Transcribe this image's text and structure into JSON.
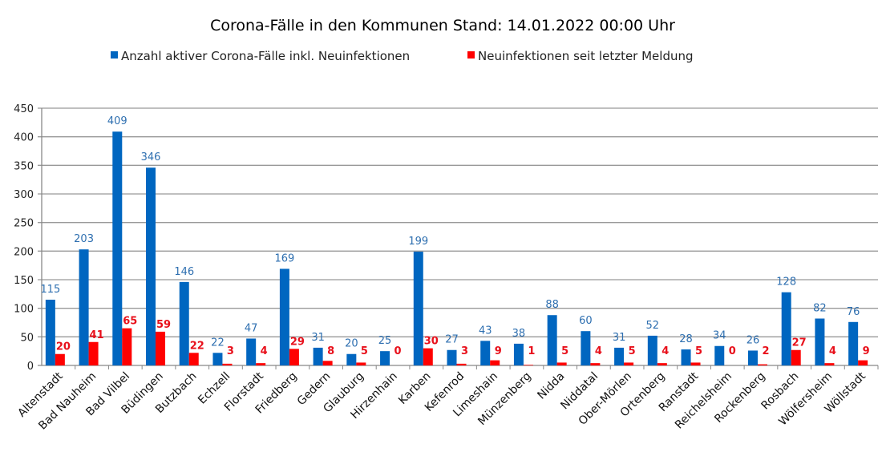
{
  "chart_data": {
    "type": "bar",
    "title": "Corona-Fälle in den Kommunen Stand: 14.01.2022 00:00 Uhr",
    "xlabel": "",
    "ylabel": "",
    "ylim": [
      0,
      450
    ],
    "yticks": [
      0,
      50,
      100,
      150,
      200,
      250,
      300,
      350,
      400,
      450
    ],
    "grid": true,
    "legend_position": "top",
    "categories": [
      "Altenstadt",
      "Bad Nauheim",
      "Bad Vilbel",
      "Büdingen",
      "Butzbach",
      "Echzell",
      "Florstadt",
      "Friedberg",
      "Gedern",
      "Glauburg",
      "Hirzenhain",
      "Karben",
      "Kefenrod",
      "Limeshain",
      "Münzenberg",
      "Nidda",
      "Niddatal",
      "Ober-Mörlen",
      "Ortenberg",
      "Ranstadt",
      "Reichelsheim",
      "Rockenberg",
      "Rosbach",
      "Wölfersheim",
      "Wöllstadt"
    ],
    "series": [
      {
        "name": "Anzahl aktiver Corona-Fälle inkl. Neuinfektionen",
        "color": "#0066c0",
        "label_color": "#2e6fb0",
        "values": [
          115,
          203,
          409,
          346,
          146,
          22,
          47,
          169,
          31,
          20,
          25,
          199,
          27,
          43,
          38,
          88,
          60,
          31,
          52,
          28,
          34,
          26,
          128,
          82,
          76
        ]
      },
      {
        "name": "Neuinfektionen seit letzter Meldung",
        "color": "#ff0000",
        "label_color": "#e8101b",
        "values": [
          20,
          41,
          65,
          59,
          22,
          3,
          4,
          29,
          8,
          5,
          0,
          30,
          3,
          9,
          1,
          5,
          4,
          5,
          4,
          5,
          0,
          2,
          27,
          4,
          9
        ]
      }
    ]
  }
}
